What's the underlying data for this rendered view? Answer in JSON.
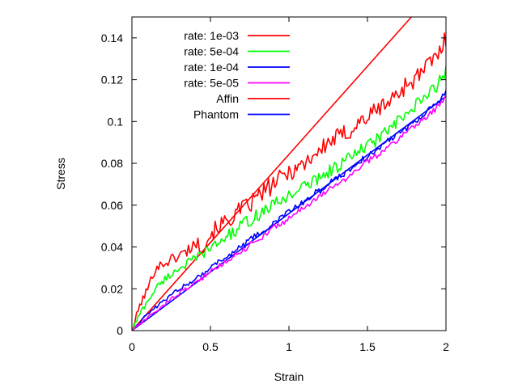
{
  "chart_data": {
    "type": "line",
    "title": "",
    "xlabel": "Strain",
    "ylabel": "Stress",
    "xlim": [
      0,
      2
    ],
    "ylim": [
      0,
      0.15
    ],
    "xticks": [
      0,
      0.5,
      1,
      1.5,
      2
    ],
    "xtick_labels": [
      "0",
      "0.5",
      "1",
      "1.5",
      "2"
    ],
    "yticks": [
      0,
      0.02,
      0.04,
      0.06,
      0.08,
      0.1,
      0.12,
      0.14
    ],
    "ytick_labels": [
      "0",
      "0.02",
      "0.04",
      "0.06",
      "0.08",
      "0.1",
      "0.12",
      "0.14"
    ],
    "grid": false,
    "legend_position": "top-left",
    "series": [
      {
        "name": "rate: 1e-03",
        "color": "#ff0000",
        "style": "noisy",
        "x": [
          0,
          0.05,
          0.1,
          0.15,
          0.2,
          0.25,
          0.3,
          0.35,
          0.4,
          0.45,
          0.5,
          0.55,
          0.6,
          0.65,
          0.7,
          0.75,
          0.8,
          0.85,
          0.9,
          0.95,
          1.0,
          1.05,
          1.1,
          1.15,
          1.2,
          1.25,
          1.3,
          1.35,
          1.4,
          1.45,
          1.5,
          1.55,
          1.6,
          1.65,
          1.7,
          1.75,
          1.8,
          1.85,
          1.9,
          1.95,
          2.0
        ],
        "y": [
          0.0,
          0.012,
          0.02,
          0.03,
          0.032,
          0.034,
          0.036,
          0.038,
          0.042,
          0.04,
          0.046,
          0.05,
          0.052,
          0.055,
          0.058,
          0.06,
          0.064,
          0.067,
          0.07,
          0.073,
          0.076,
          0.078,
          0.08,
          0.084,
          0.086,
          0.09,
          0.092,
          0.094,
          0.096,
          0.1,
          0.102,
          0.105,
          0.108,
          0.11,
          0.114,
          0.118,
          0.12,
          0.124,
          0.128,
          0.132,
          0.14
        ]
      },
      {
        "name": "5e-04",
        "color": "#00ff00",
        "style": "noisy",
        "x": [
          0,
          0.05,
          0.1,
          0.15,
          0.2,
          0.25,
          0.3,
          0.35,
          0.4,
          0.45,
          0.5,
          0.55,
          0.6,
          0.65,
          0.7,
          0.75,
          0.8,
          0.85,
          0.9,
          0.95,
          1.0,
          1.05,
          1.1,
          1.15,
          1.2,
          1.25,
          1.3,
          1.35,
          1.4,
          1.45,
          1.5,
          1.55,
          1.6,
          1.65,
          1.7,
          1.75,
          1.8,
          1.85,
          1.9,
          1.95,
          2.0
        ],
        "y": [
          0.0,
          0.008,
          0.014,
          0.02,
          0.024,
          0.027,
          0.03,
          0.032,
          0.034,
          0.037,
          0.039,
          0.042,
          0.045,
          0.047,
          0.05,
          0.053,
          0.055,
          0.058,
          0.06,
          0.062,
          0.065,
          0.067,
          0.069,
          0.071,
          0.074,
          0.076,
          0.078,
          0.081,
          0.083,
          0.086,
          0.088,
          0.091,
          0.094,
          0.097,
          0.1,
          0.103,
          0.107,
          0.11,
          0.114,
          0.118,
          0.124
        ]
      },
      {
        "name": "1e-04",
        "color": "#0000ff",
        "style": "noisy",
        "x": [
          0,
          0.05,
          0.1,
          0.15,
          0.2,
          0.25,
          0.3,
          0.35,
          0.4,
          0.45,
          0.5,
          0.55,
          0.6,
          0.65,
          0.7,
          0.75,
          0.8,
          0.85,
          0.9,
          0.95,
          1.0,
          1.05,
          1.1,
          1.15,
          1.2,
          1.25,
          1.3,
          1.35,
          1.4,
          1.45,
          1.5,
          1.55,
          1.6,
          1.65,
          1.7,
          1.75,
          1.8,
          1.85,
          1.9,
          1.95,
          2.0
        ],
        "y": [
          0.0,
          0.004,
          0.008,
          0.011,
          0.014,
          0.017,
          0.02,
          0.022,
          0.025,
          0.027,
          0.03,
          0.033,
          0.035,
          0.038,
          0.04,
          0.043,
          0.046,
          0.048,
          0.051,
          0.054,
          0.057,
          0.059,
          0.062,
          0.065,
          0.067,
          0.07,
          0.073,
          0.075,
          0.078,
          0.081,
          0.083,
          0.086,
          0.089,
          0.092,
          0.095,
          0.097,
          0.1,
          0.103,
          0.106,
          0.109,
          0.114
        ]
      },
      {
        "name": "5e-05",
        "color": "#ff00ff",
        "style": "noisy",
        "x": [
          0,
          0.05,
          0.1,
          0.15,
          0.2,
          0.25,
          0.3,
          0.35,
          0.4,
          0.45,
          0.5,
          0.55,
          0.6,
          0.65,
          0.7,
          0.75,
          0.8,
          0.85,
          0.9,
          0.95,
          1.0,
          1.05,
          1.1,
          1.15,
          1.2,
          1.25,
          1.3,
          1.35,
          1.4,
          1.45,
          1.5,
          1.55,
          1.6,
          1.65,
          1.7,
          1.75,
          1.8,
          1.85,
          1.9,
          1.95,
          2.0
        ],
        "y": [
          0.0,
          0.003,
          0.006,
          0.009,
          0.012,
          0.015,
          0.018,
          0.02,
          0.023,
          0.025,
          0.028,
          0.031,
          0.033,
          0.036,
          0.038,
          0.041,
          0.043,
          0.046,
          0.049,
          0.051,
          0.054,
          0.056,
          0.059,
          0.062,
          0.064,
          0.067,
          0.07,
          0.072,
          0.075,
          0.078,
          0.081,
          0.083,
          0.086,
          0.089,
          0.092,
          0.095,
          0.098,
          0.101,
          0.104,
          0.107,
          0.112
        ]
      },
      {
        "name": "Affin",
        "color": "#ff0000",
        "style": "straight",
        "x": [
          0,
          1.78
        ],
        "y": [
          0,
          0.15
        ]
      },
      {
        "name": "Phantom",
        "color": "#0000ff",
        "style": "straight",
        "x": [
          0,
          2
        ],
        "y": [
          0,
          0.112
        ]
      }
    ],
    "legend": {
      "labels": [
        "rate: 1e-03",
        "rate: 5e-04",
        "rate: 1e-04",
        "rate: 5e-05",
        "Affin",
        "Phantom"
      ],
      "colors": [
        "#ff0000",
        "#00ff00",
        "#0000ff",
        "#ff00ff",
        "#ff0000",
        "#0000ff"
      ]
    }
  }
}
